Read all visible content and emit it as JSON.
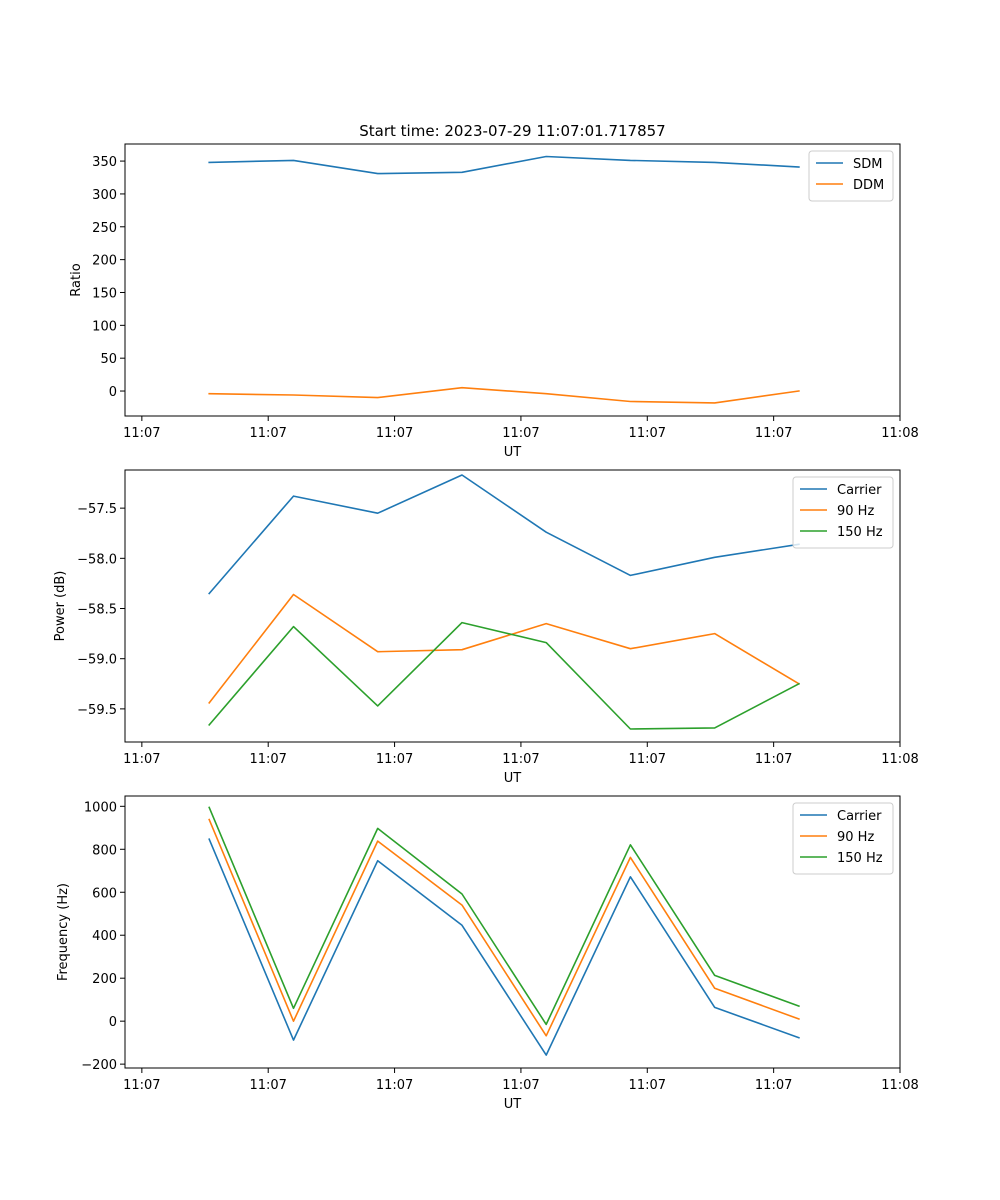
{
  "chart_data": [
    {
      "type": "line",
      "title": "Start time: 2023-07-29 11:07:01.717857",
      "xlabel": "UT",
      "ylabel": "Ratio",
      "xlim": [
        0,
        9.2
      ],
      "ylim": [
        -38,
        376
      ],
      "x_ticks": [
        0.2,
        1.7,
        3.2,
        4.7,
        6.2,
        7.7,
        9.2
      ],
      "x_tick_labels": [
        "11:07",
        "11:07",
        "11:07",
        "11:07",
        "11:07",
        "11:07",
        "11:08"
      ],
      "y_ticks": [
        0,
        50,
        100,
        150,
        200,
        250,
        300,
        350
      ],
      "y_tick_labels": [
        "0",
        "50",
        "100",
        "150",
        "200",
        "250",
        "300",
        "350"
      ],
      "x": [
        1,
        2,
        3,
        4,
        5,
        6,
        7,
        8
      ],
      "legend_position": "top-right",
      "series": [
        {
          "name": "SDM",
          "color": "#1f77b4",
          "values": [
            348,
            351,
            331,
            333,
            357,
            351,
            348,
            341
          ]
        },
        {
          "name": "DDM",
          "color": "#ff7f0e",
          "values": [
            -4,
            -6,
            -10,
            5,
            -4,
            -16,
            -18,
            0
          ]
        }
      ]
    },
    {
      "type": "line",
      "title": "",
      "xlabel": "UT",
      "ylabel": "Power (dB)",
      "xlim": [
        0,
        9.2
      ],
      "ylim": [
        -59.83,
        -57.12
      ],
      "x_ticks": [
        0.2,
        1.7,
        3.2,
        4.7,
        6.2,
        7.7,
        9.2
      ],
      "x_tick_labels": [
        "11:07",
        "11:07",
        "11:07",
        "11:07",
        "11:07",
        "11:07",
        "11:08"
      ],
      "y_ticks": [
        -59.5,
        -59.0,
        -58.5,
        -58.0,
        -57.5
      ],
      "y_tick_labels": [
        "−59.5",
        "−59.0",
        "−58.5",
        "−58.0",
        "−57.5"
      ],
      "x": [
        1,
        2,
        3,
        4,
        5,
        6,
        7,
        8
      ],
      "legend_position": "top-right",
      "series": [
        {
          "name": "Carrier",
          "color": "#1f77b4",
          "values": [
            -58.35,
            -57.38,
            -57.55,
            -57.17,
            -57.74,
            -58.17,
            -57.99,
            -57.86
          ]
        },
        {
          "name": "90 Hz",
          "color": "#ff7f0e",
          "values": [
            -59.44,
            -58.36,
            -58.93,
            -58.91,
            -58.65,
            -58.9,
            -58.75,
            -59.25
          ]
        },
        {
          "name": "150 Hz",
          "color": "#2ca02c",
          "values": [
            -59.66,
            -58.68,
            -59.47,
            -58.64,
            -58.84,
            -59.7,
            -59.69,
            -59.25
          ]
        }
      ]
    },
    {
      "type": "line",
      "title": "",
      "xlabel": "UT",
      "ylabel": "Frequency (Hz)",
      "xlim": [
        0,
        9.2
      ],
      "ylim": [
        -218,
        1048
      ],
      "x_ticks": [
        0.2,
        1.7,
        3.2,
        4.7,
        6.2,
        7.7,
        9.2
      ],
      "x_tick_labels": [
        "11:07",
        "11:07",
        "11:07",
        "11:07",
        "11:07",
        "11:07",
        "11:08"
      ],
      "y_ticks": [
        -200,
        0,
        200,
        400,
        600,
        800,
        1000
      ],
      "y_tick_labels": [
        "−200",
        "0",
        "200",
        "400",
        "600",
        "800",
        "1000"
      ],
      "x": [
        1,
        2,
        3,
        4,
        5,
        6,
        7,
        8
      ],
      "legend_position": "top-right",
      "series": [
        {
          "name": "Carrier",
          "color": "#1f77b4",
          "values": [
            847,
            -88,
            747,
            446,
            -158,
            672,
            64,
            -77
          ]
        },
        {
          "name": "90 Hz",
          "color": "#ff7f0e",
          "values": [
            938,
            0,
            838,
            540,
            -68,
            762,
            153,
            10
          ]
        },
        {
          "name": "150 Hz",
          "color": "#2ca02c",
          "values": [
            995,
            60,
            897,
            592,
            -15,
            821,
            213,
            70
          ]
        }
      ]
    }
  ]
}
